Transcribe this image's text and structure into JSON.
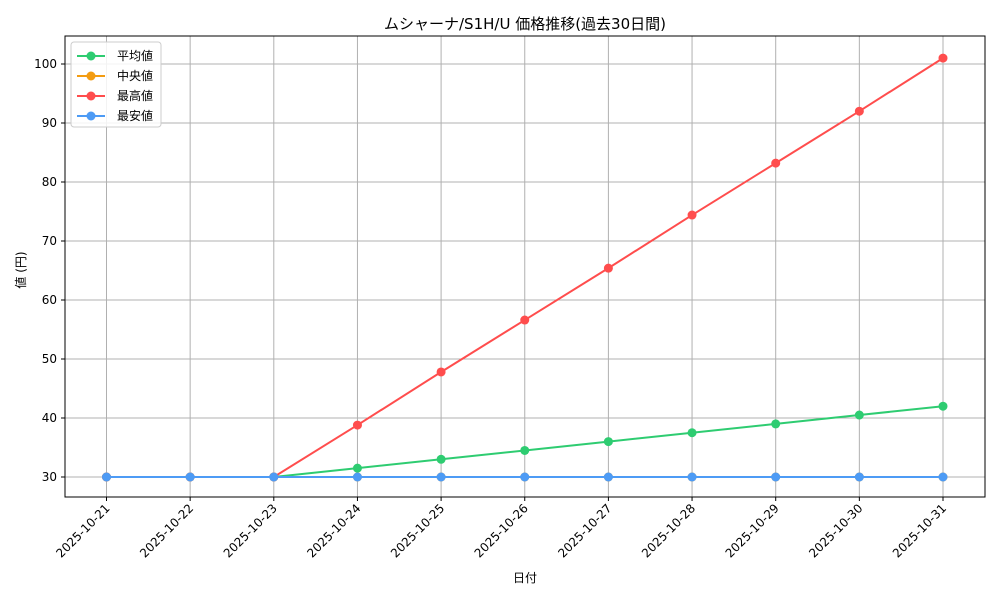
{
  "chart_data": {
    "type": "line",
    "title": "ムシャーナ/S1H/U 価格推移(過去30日間)",
    "xlabel": "日付",
    "ylabel": "値 (円)",
    "categories": [
      "2025-10-21",
      "2025-10-22",
      "2025-10-23",
      "2025-10-24",
      "2025-10-25",
      "2025-10-26",
      "2025-10-27",
      "2025-10-28",
      "2025-10-29",
      "2025-10-30",
      "2025-10-31"
    ],
    "yticks": [
      30,
      40,
      50,
      60,
      70,
      80,
      90,
      100
    ],
    "ylim": [
      26.5,
      104.5
    ],
    "grid": true,
    "legend_position": "upper left",
    "series": [
      {
        "name": "平均値",
        "color": "#2ecc71",
        "values": [
          30,
          30,
          30,
          31.5,
          33,
          34.5,
          36,
          37.5,
          39,
          40.5,
          42
        ]
      },
      {
        "name": "中央値",
        "color": "#f39c12",
        "values": [
          30,
          30,
          30,
          30,
          30,
          30,
          30,
          30,
          30,
          30,
          30
        ]
      },
      {
        "name": "最高値",
        "color": "#ff4d4d",
        "values": [
          30,
          30,
          30,
          38.8,
          47.8,
          56.6,
          65.4,
          74.4,
          83.2,
          92,
          101
        ]
      },
      {
        "name": "最安値",
        "color": "#4d9bf5",
        "values": [
          30,
          30,
          30,
          30,
          30,
          30,
          30,
          30,
          30,
          30,
          30
        ]
      }
    ]
  }
}
